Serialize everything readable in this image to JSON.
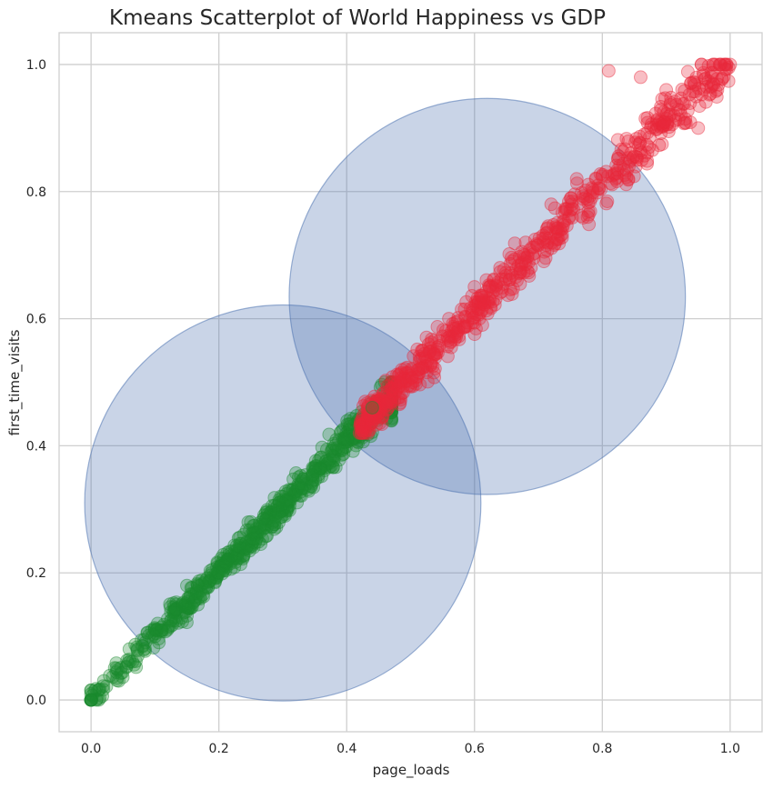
{
  "chart_data": {
    "type": "scatter",
    "title": "Kmeans Scatterplot of World Happiness vs GDP",
    "xlabel": "page_loads",
    "ylabel": "first_time_visits",
    "xlim": [
      -0.05,
      1.05
    ],
    "ylim": [
      -0.05,
      1.05
    ],
    "x_ticks": [
      "0.0",
      "0.2",
      "0.4",
      "0.6",
      "0.8",
      "1.0"
    ],
    "y_ticks": [
      "0.0",
      "0.2",
      "0.4",
      "0.6",
      "0.8",
      "1.0"
    ],
    "grid": true,
    "legend": "none",
    "colors": {
      "cluster_1": "#1a8a2e",
      "cluster_2": "#e8283a",
      "centroid_circle": "#4c72b0"
    },
    "clusters": [
      {
        "color": "#1a8a2e",
        "x_range": [
          0.0,
          0.47
        ],
        "y_range": [
          0.0,
          0.5
        ],
        "trend": {
          "slope": 1.02,
          "intercept": 0.0
        },
        "approx_count": 700
      },
      {
        "color": "#e8283a",
        "x_range": [
          0.42,
          1.0
        ],
        "y_range": [
          0.42,
          1.0
        ],
        "trend": {
          "slope": 1.0,
          "intercept": 0.01
        },
        "approx_count": 650
      }
    ],
    "centroid_circles": [
      {
        "cx": 0.3,
        "cy": 0.31,
        "r": 0.31
      },
      {
        "cx": 0.62,
        "cy": 0.635,
        "r": 0.31
      }
    ],
    "sample_points": [
      {
        "x": 0.0,
        "y": 0.0
      },
      {
        "x": 0.0,
        "y": 0.015
      },
      {
        "x": 0.02,
        "y": 0.03
      },
      {
        "x": 0.04,
        "y": 0.05
      },
      {
        "x": 0.06,
        "y": 0.08
      },
      {
        "x": 0.1,
        "y": 0.1
      },
      {
        "x": 0.15,
        "y": 0.18
      },
      {
        "x": 0.2,
        "y": 0.2
      },
      {
        "x": 0.25,
        "y": 0.28
      },
      {
        "x": 0.3,
        "y": 0.32
      },
      {
        "x": 0.35,
        "y": 0.36
      },
      {
        "x": 0.4,
        "y": 0.41
      },
      {
        "x": 0.44,
        "y": 0.46
      },
      {
        "x": 0.48,
        "y": 0.5
      },
      {
        "x": 0.52,
        "y": 0.55
      },
      {
        "x": 0.56,
        "y": 0.6
      },
      {
        "x": 0.6,
        "y": 0.65
      },
      {
        "x": 0.64,
        "y": 0.68
      },
      {
        "x": 0.68,
        "y": 0.72
      },
      {
        "x": 0.72,
        "y": 0.78
      },
      {
        "x": 0.76,
        "y": 0.82
      },
      {
        "x": 0.81,
        "y": 0.99
      },
      {
        "x": 0.86,
        "y": 0.98
      },
      {
        "x": 0.9,
        "y": 0.96
      },
      {
        "x": 0.95,
        "y": 0.9
      },
      {
        "x": 0.98,
        "y": 0.96
      },
      {
        "x": 1.0,
        "y": 1.0
      }
    ]
  }
}
